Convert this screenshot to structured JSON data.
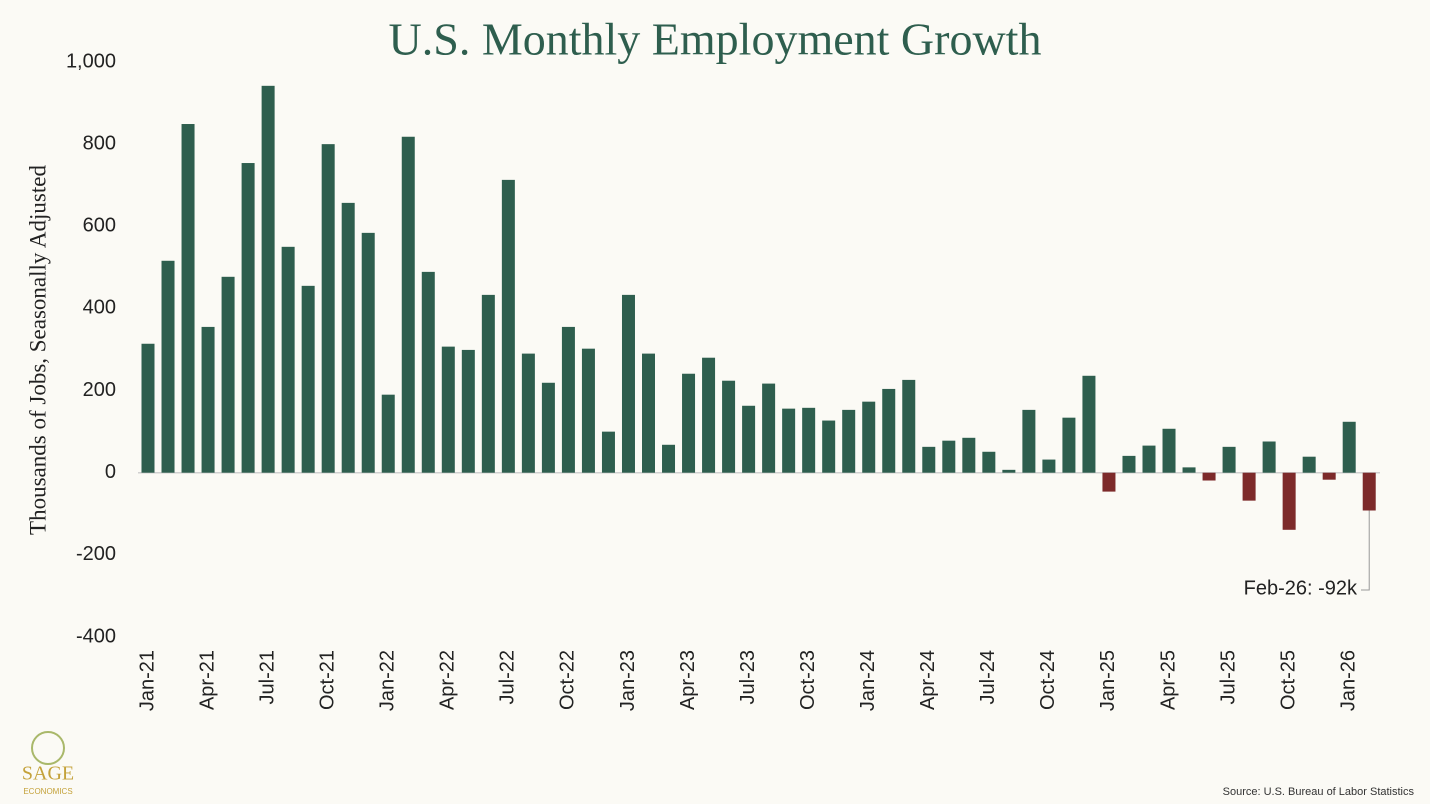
{
  "chart_data": {
    "type": "bar",
    "title": "U.S. Monthly Employment Growth",
    "y_label": "Thousands of Jobs, Seasonally Adjusted",
    "source": "Source: U.S. Bureau of Labor Statistics",
    "logo_text": "SAGE",
    "logo_subtext": "ECONOMICS",
    "annotation": "Feb-26: -92k",
    "categories": [
      "Jan-21",
      null,
      null,
      "Apr-21",
      null,
      null,
      "Jul-21",
      null,
      null,
      "Oct-21",
      null,
      null,
      "Jan-22",
      null,
      null,
      "Apr-22",
      null,
      null,
      "Jul-22",
      null,
      null,
      "Oct-22",
      null,
      null,
      "Jan-23",
      null,
      null,
      "Apr-23",
      null,
      null,
      "Jul-23",
      null,
      null,
      "Oct-23",
      null,
      null,
      "Jan-24",
      null,
      null,
      "Apr-24",
      null,
      null,
      "Jul-24",
      null,
      null,
      "Oct-24",
      null,
      null,
      "Jan-25",
      null,
      null,
      "Apr-25",
      null,
      null,
      "Jul-25",
      null,
      null,
      "Oct-25",
      null,
      null,
      "Jan-26",
      null
    ],
    "values": [
      314,
      516,
      849,
      355,
      477,
      754,
      942,
      550,
      455,
      800,
      657,
      584,
      190,
      818,
      489,
      307,
      299,
      433,
      713,
      290,
      219,
      355,
      302,
      100,
      433,
      290,
      68,
      241,
      280,
      224,
      163,
      217,
      156,
      158,
      127,
      153,
      173,
      204,
      226,
      63,
      78,
      85,
      51,
      7,
      153,
      32,
      134,
      236,
      -46,
      41,
      66,
      107,
      13,
      -19,
      63,
      -68,
      76,
      -139,
      39,
      -17,
      124,
      -92
    ],
    "color": "#2e5e4e",
    "negative_color": "#7d2a2a",
    "ylim": [
      -400,
      1000
    ],
    "yticks": [
      -400,
      -200,
      0,
      200,
      400,
      600,
      800,
      {
        "value": 1000,
        "label": "1,000"
      }
    ],
    "grid": false
  }
}
